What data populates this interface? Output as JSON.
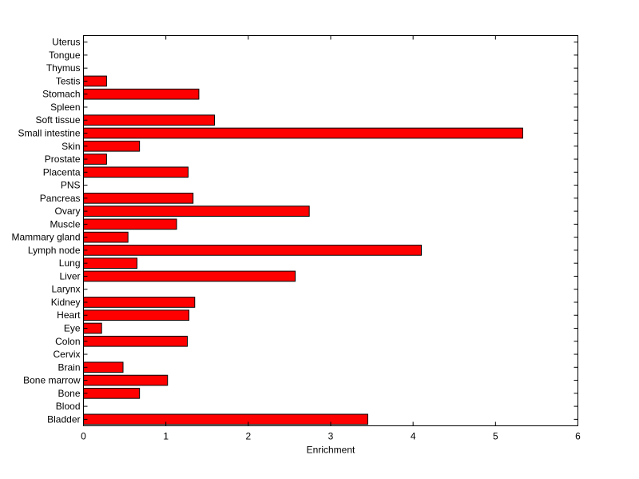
{
  "chart_data": {
    "type": "bar",
    "orientation": "horizontal",
    "title": "",
    "xlabel": "Enrichment",
    "ylabel": "",
    "xlim": [
      0,
      6
    ],
    "xticks": [
      0,
      1,
      2,
      3,
      4,
      5,
      6
    ],
    "grid": false,
    "bar_color": "#ff0000",
    "bar_edge_color": "#000000",
    "categories": [
      "Bladder",
      "Blood",
      "Bone",
      "Bone marrow",
      "Brain",
      "Cervix",
      "Colon",
      "Eye",
      "Heart",
      "Kidney",
      "Larynx",
      "Liver",
      "Lung",
      "Lymph node",
      "Mammary gland",
      "Muscle",
      "Ovary",
      "Pancreas",
      "PNS",
      "Placenta",
      "Prostate",
      "Skin",
      "Small intestine",
      "Soft tissue",
      "Spleen",
      "Stomach",
      "Testis",
      "Thymus",
      "Tongue",
      "Uterus"
    ],
    "values": [
      3.45,
      0,
      0.68,
      1.02,
      0.48,
      0,
      1.26,
      0.22,
      1.28,
      1.35,
      0,
      2.57,
      0.65,
      4.1,
      0.54,
      1.13,
      2.74,
      1.33,
      0,
      1.27,
      0.28,
      0.68,
      5.33,
      1.59,
      0,
      1.4,
      0.28,
      0,
      0,
      0
    ]
  }
}
